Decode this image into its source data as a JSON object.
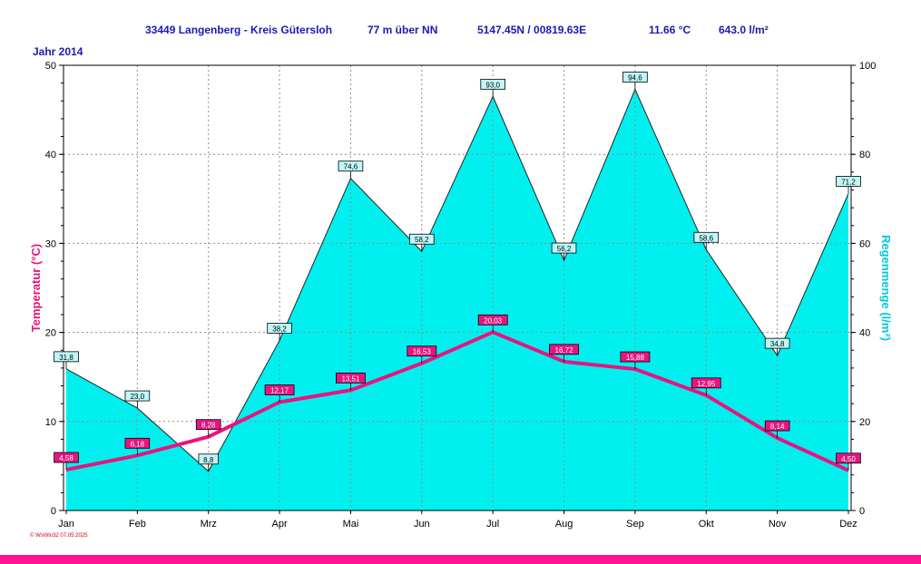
{
  "header": {
    "station": "33449 Langenberg - Kreis Gütersloh",
    "altitude": "77 m über NN",
    "coords": "5147.45N / 00819.63E",
    "mean_temp": "11.66 °C",
    "precip_total": "643.0 l/m²"
  },
  "year_label": "Jahr 2014",
  "footer_note": "© WsWin32  07.05.2025",
  "colors": {
    "rain_fill": "#00f0f0",
    "temp_line": "#e8147f",
    "title_text": "#1a1ab4",
    "grid": "#8c8c8c"
  },
  "chart_data": {
    "type": "area",
    "categories": [
      "Jan",
      "Feb",
      "Mrz",
      "Apr",
      "Mai",
      "Jun",
      "Jul",
      "Aug",
      "Sep",
      "Okt",
      "Nov",
      "Dez"
    ],
    "series": [
      {
        "name": "Regenmenge",
        "axis": "right",
        "values": [
          31.8,
          23.0,
          8.8,
          38.2,
          74.6,
          58.2,
          93.0,
          56.2,
          94.6,
          58.6,
          34.8,
          71.2
        ],
        "labels": [
          "31,8",
          "23,0",
          "8,8",
          "38,2",
          "74,6",
          "58,2",
          "93,0",
          "56,2",
          "94,6",
          "58,6",
          "34,8",
          "71,2"
        ]
      },
      {
        "name": "Temperatur",
        "axis": "left",
        "values": [
          4.58,
          6.18,
          8.28,
          12.17,
          13.51,
          16.53,
          20.03,
          16.72,
          15.88,
          12.95,
          8.14,
          4.5
        ],
        "labels": [
          "4,58",
          "6,18",
          "8,28",
          "12,17",
          "13,51",
          "16,53",
          "20,03",
          "16,72",
          "15,88",
          "12,95",
          "8,14",
          "4,50"
        ]
      }
    ],
    "ylabel_left": "Temperatur  (°C)",
    "ylabel_right": "Regenmenge  (l/m²)",
    "ylim_left": [
      0,
      50
    ],
    "ylim_right": [
      0,
      100
    ],
    "yticks_left": [
      "0",
      "10",
      "20",
      "30",
      "40",
      "50"
    ],
    "yticks_right": [
      "0",
      "20",
      "40",
      "60",
      "80",
      "100"
    ],
    "grid": true
  }
}
